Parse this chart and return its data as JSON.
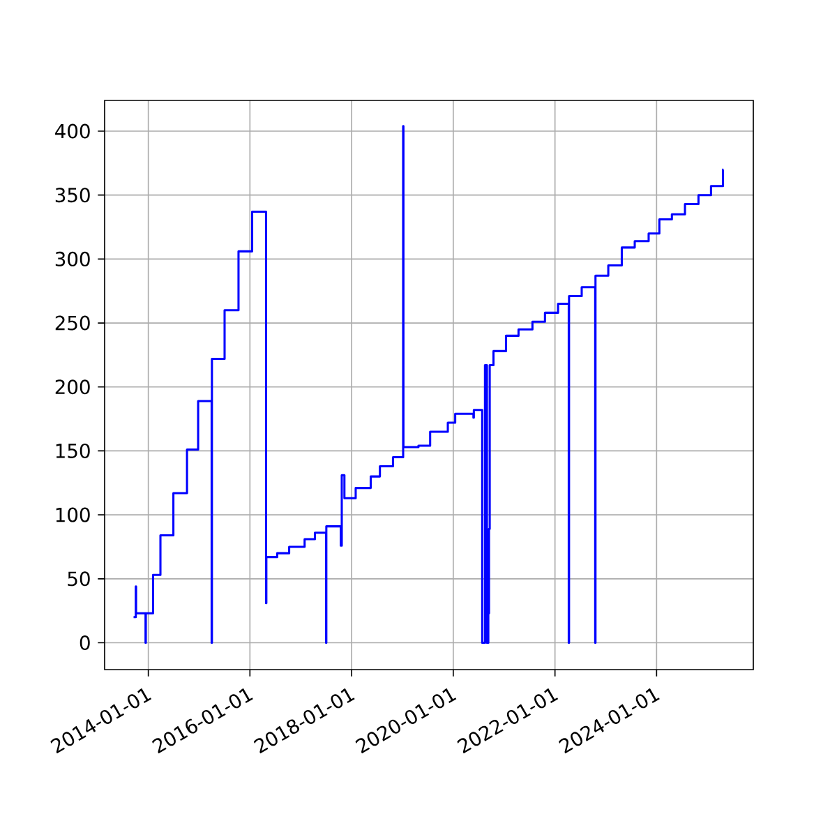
{
  "chart_data": {
    "type": "step",
    "color": "#0000ff",
    "grid": true,
    "marker": "none",
    "x": [
      "2013-09-17",
      "2013-10-03",
      "2013-10-05",
      "2013-12-12",
      "2013-12-14",
      "2014-02-04",
      "2014-03-29",
      "2014-06-30",
      "2014-10-06",
      "2014-12-25",
      "2015-04-01",
      "2015-04-03",
      "2015-07-03",
      "2015-10-11",
      "2016-01-17",
      "2016-04-26",
      "2016-04-28",
      "2016-07-15",
      "2016-10-09",
      "2017-01-28",
      "2017-04-12",
      "2017-07-01",
      "2017-07-03",
      "2017-10-15",
      "2017-10-22",
      "2017-11-10",
      "2018-01-30",
      "2018-05-18",
      "2018-07-23",
      "2018-10-25",
      "2019-01-06",
      "2019-01-08",
      "2019-04-26",
      "2019-07-19",
      "2019-11-23",
      "2020-01-15",
      "2020-05-25",
      "2020-05-28",
      "2020-07-27",
      "2020-08-16",
      "2020-08-30",
      "2020-09-09",
      "2020-09-14",
      "2020-09-19",
      "2020-10-16",
      "2021-01-14",
      "2021-04-14",
      "2021-07-23",
      "2021-10-21",
      "2022-01-23",
      "2022-04-10",
      "2022-04-12",
      "2022-07-12",
      "2022-10-17",
      "2022-10-19",
      "2023-01-19",
      "2023-04-26",
      "2023-07-28",
      "2023-11-05",
      "2024-01-21",
      "2024-04-20",
      "2024-07-23",
      "2024-10-28",
      "2025-01-26",
      "2025-04-22",
      "2025-04-24"
    ],
    "values": [
      20,
      44,
      23,
      0,
      23,
      53,
      84,
      117,
      151,
      189,
      0,
      222,
      260,
      306,
      337,
      31,
      67,
      70,
      75,
      81,
      86,
      0,
      91,
      76,
      131,
      113,
      121,
      130,
      138,
      145,
      404,
      153,
      154,
      165,
      172,
      179,
      176,
      182,
      0,
      217,
      0,
      23,
      89,
      217,
      228,
      240,
      245,
      251,
      258,
      265,
      0,
      271,
      278,
      0,
      287,
      295,
      309,
      314,
      320,
      331,
      335,
      343,
      350,
      357,
      370,
      370
    ],
    "xlim": [
      "2013-02-21",
      "2025-11-26"
    ],
    "xticks": [
      {
        "value": "2014-01-01",
        "label": "2014-01-01"
      },
      {
        "value": "2016-01-01",
        "label": "2016-01-01"
      },
      {
        "value": "2018-01-01",
        "label": "2018-01-01"
      },
      {
        "value": "2020-01-01",
        "label": "2020-01-01"
      },
      {
        "value": "2022-01-01",
        "label": "2022-01-01"
      },
      {
        "value": "2024-01-01",
        "label": "2024-01-01"
      }
    ],
    "ylim": [
      -21,
      424
    ],
    "yticks": [
      0,
      50,
      100,
      150,
      200,
      250,
      300,
      350,
      400
    ]
  }
}
